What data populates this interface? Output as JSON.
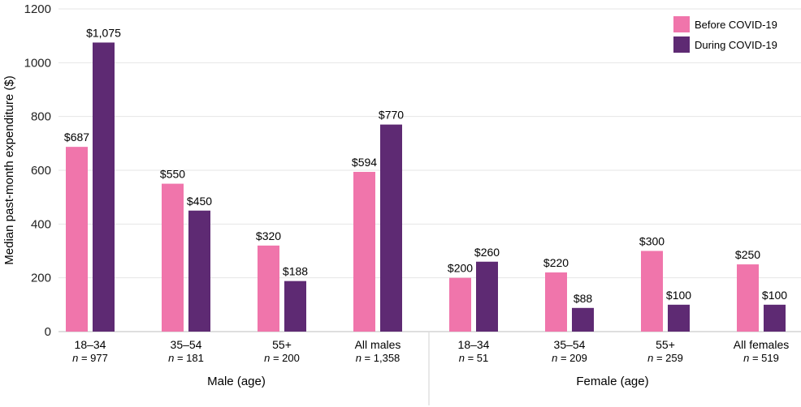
{
  "chart_data": {
    "type": "bar",
    "ylabel": "Median past-month expenditure ($)",
    "ylim": [
      0,
      1200
    ],
    "yticks": [
      0,
      200,
      400,
      600,
      800,
      1000,
      1200
    ],
    "grid": true,
    "legend_position": "top-right",
    "colors": {
      "before": "#F075AB",
      "during": "#5E2A73"
    },
    "series": [
      {
        "name": "Before COVID-19",
        "values": [
          687,
          550,
          320,
          594,
          200,
          220,
          300,
          250
        ],
        "labels": [
          "$687",
          "$550",
          "$320",
          "$594",
          "$200",
          "$220",
          "$300",
          "$250"
        ]
      },
      {
        "name": "During COVID-19",
        "values": [
          1075,
          450,
          188,
          770,
          260,
          88,
          100,
          100
        ],
        "labels": [
          "$1,075",
          "$450",
          "$188",
          "$770",
          "$260",
          "$88",
          "$100",
          "$100"
        ]
      }
    ],
    "categories": [
      {
        "label": "18–34",
        "n": "977"
      },
      {
        "label": "35–54",
        "n": "181"
      },
      {
        "label": "55+",
        "n": "200"
      },
      {
        "label": "All males",
        "n": "1,358"
      },
      {
        "label": "18–34",
        "n": "51"
      },
      {
        "label": "35–54",
        "n": "209"
      },
      {
        "label": "55+",
        "n": "259"
      },
      {
        "label": "All females",
        "n": "519"
      }
    ],
    "n_prefix": "n",
    "groups": [
      {
        "label": "Male (age)"
      },
      {
        "label": "Female (age)"
      }
    ]
  }
}
